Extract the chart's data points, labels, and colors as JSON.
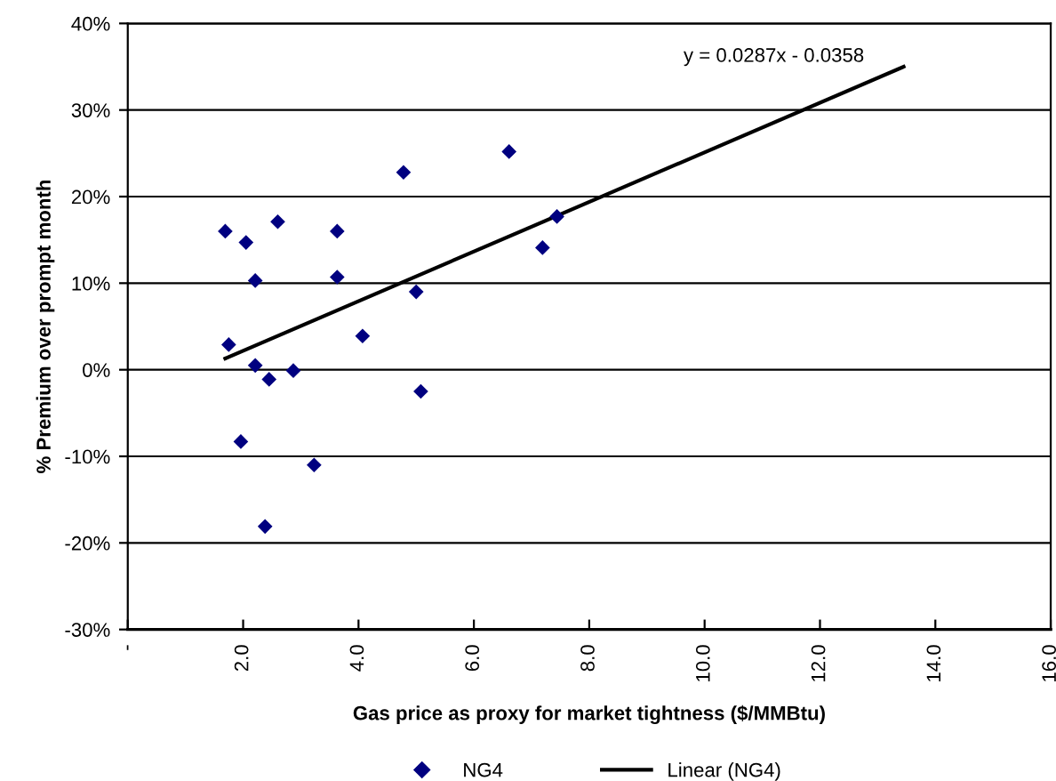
{
  "chart_data": {
    "type": "scatter",
    "xlabel": "Gas price as proxy for market tightness ($/MMBtu)",
    "ylabel": "% Premium over prompt month",
    "annotations": [
      "y = 0.0287x - 0.0358"
    ],
    "series": [
      {
        "name": "NG4",
        "color": "#000080",
        "marker": "diamond",
        "x": [
          1.69,
          1.75,
          2.05,
          2.21,
          2.21,
          1.96,
          2.45,
          2.38,
          2.6,
          2.87,
          3.23,
          3.63,
          3.63,
          4.07,
          4.78,
          5.0,
          5.08,
          6.61,
          7.19,
          7.44
        ],
        "values": [
          16.0,
          2.9,
          14.7,
          10.3,
          0.5,
          -8.3,
          -1.1,
          -18.1,
          17.1,
          -0.1,
          -11.0,
          16.0,
          10.7,
          3.9,
          22.8,
          9.0,
          -2.5,
          25.2,
          14.1,
          17.7
        ]
      },
      {
        "name": "Linear (NG4)",
        "type": "line",
        "color": "#000000",
        "line_style": "solid",
        "marker": "none",
        "x": [
          1.69,
          13.45
        ],
        "values": [
          1.3,
          35.0
        ]
      }
    ],
    "xlim": [
      0,
      16
    ],
    "ylim": [
      -30,
      40
    ],
    "xticks": [
      {
        "value": 0,
        "label": "-"
      },
      {
        "value": 2,
        "label": "2.0"
      },
      {
        "value": 4,
        "label": "4.0"
      },
      {
        "value": 6,
        "label": "6.0"
      },
      {
        "value": 8,
        "label": "8.0"
      },
      {
        "value": 10,
        "label": "10.0"
      },
      {
        "value": 12,
        "label": "12.0"
      },
      {
        "value": 14,
        "label": "14.0"
      },
      {
        "value": 16,
        "label": "16.0"
      }
    ],
    "yticks": [
      {
        "value": -30,
        "label": "-30%"
      },
      {
        "value": -20,
        "label": "-20%"
      },
      {
        "value": -10,
        "label": "-10%"
      },
      {
        "value": 0,
        "label": "0%"
      },
      {
        "value": 10,
        "label": "10%"
      },
      {
        "value": 20,
        "label": "20%"
      },
      {
        "value": 30,
        "label": "30%"
      },
      {
        "value": 40,
        "label": "40%"
      }
    ],
    "grid": "y",
    "legend": "bottom"
  }
}
